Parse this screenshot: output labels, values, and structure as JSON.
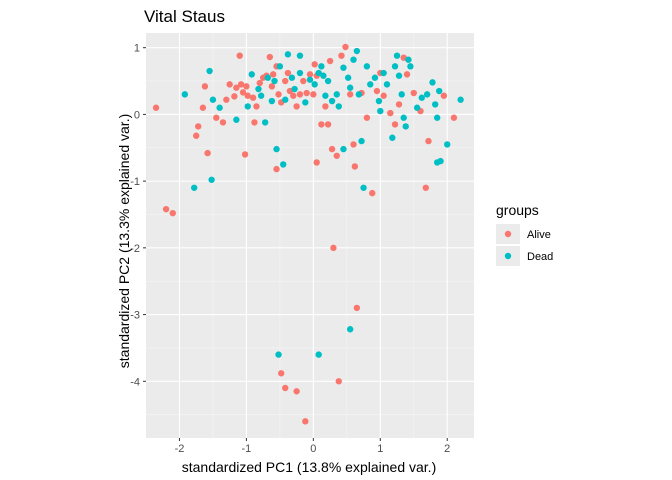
{
  "chart_data": {
    "type": "scatter",
    "title": "Vital Staus",
    "xlabel": "standardized PC1 (13.8% explained var.)",
    "ylabel": "standardized PC2 (13.3% explained var.)",
    "xlim": [
      -2.5,
      2.4
    ],
    "ylim": [
      -4.85,
      1.22
    ],
    "xticks": [
      -2,
      -1,
      0,
      1,
      2
    ],
    "yticks": [
      -4,
      -3,
      -2,
      -1,
      0,
      1
    ],
    "tick_labels_x": [
      "-2",
      "-1",
      "0",
      "1",
      "2"
    ],
    "tick_labels_y": [
      "-4",
      "-3",
      "-2",
      "-1",
      "0",
      "1"
    ],
    "grid": true,
    "legend": {
      "title": "groups",
      "position": "right"
    },
    "series": [
      {
        "name": "Alive",
        "color": "#F8766D",
        "points": [
          [
            -2.35,
            0.1
          ],
          [
            -2.2,
            -1.42
          ],
          [
            -2.1,
            -1.48
          ],
          [
            -1.75,
            -0.32
          ],
          [
            -1.72,
            -0.18
          ],
          [
            -1.65,
            0.1
          ],
          [
            -1.62,
            0.42
          ],
          [
            -1.35,
            -0.12
          ],
          [
            -1.3,
            0.22
          ],
          [
            -1.25,
            0.45
          ],
          [
            -1.18,
            0.27
          ],
          [
            -1.15,
            0.4
          ],
          [
            -1.1,
            0.88
          ],
          [
            -1.08,
            0.45
          ],
          [
            -1.05,
            0.33
          ],
          [
            -1.0,
            0.42
          ],
          [
            -0.98,
            0.28
          ],
          [
            -0.9,
            0.25
          ],
          [
            -0.88,
            -0.12
          ],
          [
            -0.85,
            0.12
          ],
          [
            -0.8,
            0.47
          ],
          [
            -0.75,
            0.55
          ],
          [
            -0.7,
            0.58
          ],
          [
            -0.65,
            0.86
          ],
          [
            -0.6,
            0.6
          ],
          [
            -0.55,
            0.72
          ],
          [
            -0.52,
            0.3
          ],
          [
            -0.48,
            0.18
          ],
          [
            -0.42,
            0.5
          ],
          [
            -0.38,
            0.62
          ],
          [
            -0.35,
            0.35
          ],
          [
            -0.3,
            0.28
          ],
          [
            -0.25,
            0.12
          ],
          [
            -0.2,
            0.3
          ],
          [
            -0.15,
            0.5
          ],
          [
            -0.1,
            0.32
          ],
          [
            -0.05,
            0.6
          ],
          [
            0.0,
            0.3
          ],
          [
            0.02,
            0.75
          ],
          [
            0.05,
            0.58
          ],
          [
            0.12,
            -0.15
          ],
          [
            0.18,
            0.12
          ],
          [
            0.25,
            0.8
          ],
          [
            0.28,
            -0.52
          ],
          [
            0.3,
            -2.0
          ],
          [
            0.35,
            -0.62
          ],
          [
            0.42,
            0.88
          ],
          [
            0.48,
            1.01
          ],
          [
            0.55,
            0.3
          ],
          [
            0.6,
            -0.45
          ],
          [
            0.62,
            -0.78
          ],
          [
            0.65,
            -2.9
          ],
          [
            0.72,
            0.32
          ],
          [
            0.8,
            -0.05
          ],
          [
            0.88,
            -1.18
          ],
          [
            0.95,
            0.35
          ],
          [
            1.0,
            0.62
          ],
          [
            1.05,
            0.28
          ],
          [
            1.15,
            0.02
          ],
          [
            1.22,
            -0.15
          ],
          [
            1.28,
            0.15
          ],
          [
            1.35,
            0.85
          ],
          [
            1.4,
            0.6
          ],
          [
            1.5,
            0.32
          ],
          [
            1.6,
            0.05
          ],
          [
            1.68,
            -1.1
          ],
          [
            1.72,
            -0.4
          ],
          [
            -1.58,
            -0.58
          ],
          [
            -1.02,
            -0.6
          ],
          [
            -0.42,
            -4.1
          ],
          [
            -0.48,
            -3.88
          ],
          [
            -0.25,
            -4.15
          ],
          [
            -0.12,
            -4.6
          ],
          [
            0.38,
            -4.0
          ],
          [
            -0.55,
            -0.82
          ],
          [
            0.22,
            -0.15
          ],
          [
            0.05,
            -0.72
          ],
          [
            1.95,
            0.28
          ],
          [
            2.1,
            -0.05
          ],
          [
            -0.62,
            0.42
          ],
          [
            -1.45,
            -0.05
          ]
        ]
      },
      {
        "name": "Dead",
        "color": "#00BFC4",
        "points": [
          [
            -1.92,
            0.3
          ],
          [
            -1.78,
            -1.1
          ],
          [
            -1.55,
            0.65
          ],
          [
            -1.5,
            0.22
          ],
          [
            -1.52,
            -0.98
          ],
          [
            -1.4,
            0.1
          ],
          [
            -1.15,
            -0.08
          ],
          [
            -0.98,
            0.12
          ],
          [
            -0.92,
            0.6
          ],
          [
            -0.78,
            0.28
          ],
          [
            -0.72,
            -0.12
          ],
          [
            -0.62,
            0.2
          ],
          [
            -0.58,
            0.5
          ],
          [
            -0.55,
            -0.52
          ],
          [
            -0.5,
            0.72
          ],
          [
            -0.45,
            -0.75
          ],
          [
            -0.42,
            0.22
          ],
          [
            -0.38,
            0.9
          ],
          [
            -0.32,
            0.55
          ],
          [
            -0.28,
            0.38
          ],
          [
            -0.2,
            0.88
          ],
          [
            -0.12,
            0.18
          ],
          [
            -0.05,
            0.52
          ],
          [
            0.02,
            0.45
          ],
          [
            0.08,
            0.62
          ],
          [
            0.12,
            0.72
          ],
          [
            0.18,
            0.28
          ],
          [
            0.22,
            0.5
          ],
          [
            0.28,
            0.2
          ],
          [
            0.35,
            0.3
          ],
          [
            0.38,
            0.12
          ],
          [
            0.45,
            0.7
          ],
          [
            0.52,
            0.55
          ],
          [
            0.55,
            0.4
          ],
          [
            0.6,
            0.82
          ],
          [
            0.65,
            0.95
          ],
          [
            0.72,
            -0.4
          ],
          [
            0.75,
            -1.1
          ],
          [
            0.8,
            0.72
          ],
          [
            0.85,
            0.45
          ],
          [
            0.92,
            0.55
          ],
          [
            0.98,
            0.2
          ],
          [
            1.05,
            0.62
          ],
          [
            1.1,
            0.45
          ],
          [
            1.18,
            -0.35
          ],
          [
            1.22,
            0.72
          ],
          [
            1.28,
            0.58
          ],
          [
            1.32,
            0.3
          ],
          [
            1.35,
            -0.05
          ],
          [
            1.38,
            -0.18
          ],
          [
            1.45,
            0.72
          ],
          [
            1.55,
            0.1
          ],
          [
            1.62,
            0.25
          ],
          [
            1.7,
            0.3
          ],
          [
            1.78,
            0.48
          ],
          [
            1.82,
            0.15
          ],
          [
            1.85,
            -0.72
          ],
          [
            1.9,
            -0.7
          ],
          [
            2.0,
            -0.45
          ],
          [
            2.2,
            0.22
          ],
          [
            1.42,
            0.82
          ],
          [
            1.88,
            0.35
          ],
          [
            -0.52,
            -3.6
          ],
          [
            0.08,
            -3.6
          ],
          [
            0.55,
            -3.22
          ],
          [
            -0.82,
            0.38
          ],
          [
            -0.2,
            0.62
          ],
          [
            0.15,
            0.58
          ],
          [
            0.45,
            -0.52
          ],
          [
            1.0,
            0.05
          ],
          [
            1.85,
            -0.05
          ],
          [
            -0.68,
            0.55
          ],
          [
            0.68,
            0.3
          ],
          [
            1.25,
            0.88
          ]
        ]
      }
    ]
  }
}
